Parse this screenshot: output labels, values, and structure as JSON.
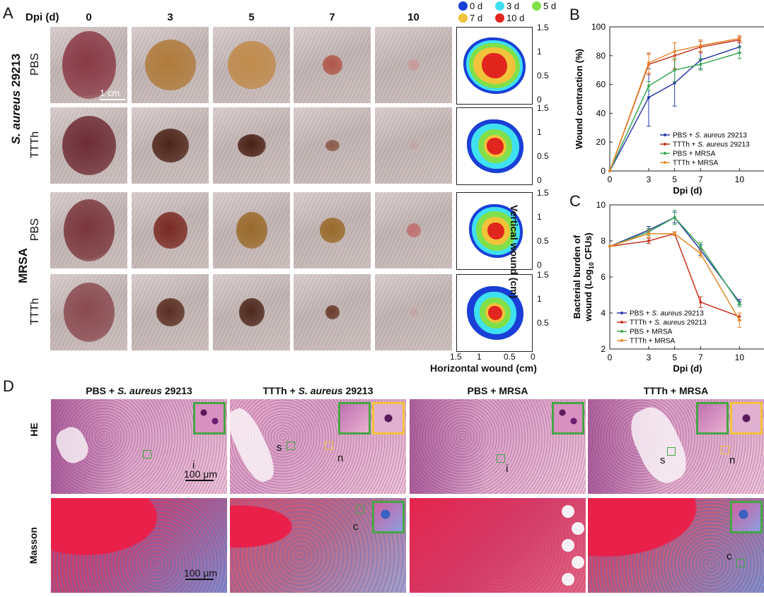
{
  "panel_a": {
    "letter": "A",
    "dpi_header": "Dpi (d)",
    "days": [
      "0",
      "3",
      "5",
      "7",
      "10"
    ],
    "groups": [
      {
        "name": "S. aureus 29213",
        "name_italic": "S. aureus",
        "name_rest": " 29213"
      },
      {
        "name": "MRSA"
      }
    ],
    "rows": [
      "PBS",
      "TTTh",
      "PBS",
      "TTTh"
    ],
    "scale_bar": "1 cm",
    "heatmap_legend": [
      "0 d",
      "3 d",
      "5 d",
      "7 d",
      "10 d"
    ],
    "heatmap_colors": [
      "#1a3fd6",
      "#3fe0f0",
      "#7fe04a",
      "#f2c33a",
      "#e0261e"
    ],
    "vertical_axis_label": "Vertical wound (cm)",
    "horizontal_axis_label": "Horizontal wound (cm)",
    "vertical_ticks": [
      "1.5",
      "1",
      "0.5",
      "0"
    ],
    "horizontal_ticks": [
      "1.5",
      "1",
      "0.5",
      "0"
    ]
  },
  "panel_b": {
    "letter": "B",
    "ylabel": "Wound contraction (%)",
    "xlabel": "Dpi (d)",
    "yticks": [
      "0",
      "20",
      "40",
      "60",
      "80",
      "100"
    ],
    "xticks": [
      "0",
      "3",
      "5",
      "7",
      "10"
    ]
  },
  "panel_c": {
    "letter": "C",
    "ylabel_line1": "Bacterial burden of",
    "ylabel_line2": "wound (Log",
    "ylabel_sub": "10",
    "ylabel_end": " CFUs)",
    "xlabel": "Dpi (d)",
    "yticks": [
      "2",
      "4",
      "6",
      "8",
      "10"
    ],
    "xticks": [
      "0",
      "3",
      "5",
      "7",
      "10"
    ]
  },
  "panel_d": {
    "letter": "D",
    "columns": [
      {
        "pre": "PBS + ",
        "ital": "S. aureus",
        "post": " 29213"
      },
      {
        "pre": "TTTh + ",
        "ital": "S. aureus",
        "post": " 29213"
      },
      {
        "pre": "PBS + MRSA",
        "ital": "",
        "post": ""
      },
      {
        "pre": "TTTh + MRSA",
        "ital": "",
        "post": ""
      }
    ],
    "rows": [
      "HE",
      "Masson"
    ],
    "scale_bar": "100 μm",
    "markers": {
      "i": "i",
      "s": "s",
      "n": "n",
      "c": "c"
    }
  },
  "chart_data": [
    {
      "type": "line",
      "title": "",
      "xlabel": "Dpi (d)",
      "ylabel": "Wound contraction (%)",
      "x": [
        0,
        3,
        5,
        7,
        10
      ],
      "ylim": [
        0,
        100
      ],
      "series": [
        {
          "name": "PBS + S. aureus 29213",
          "name_pre": "PBS + ",
          "name_ital": "S. aureus",
          "name_post": " 29213",
          "color": "#2a3aa8",
          "values": [
            0,
            51,
            61,
            77,
            86
          ]
        },
        {
          "name": "TTTh + S. aureus 29213",
          "name_pre": "TTTh + ",
          "name_ital": "S. aureus",
          "name_post": " 29213",
          "color": "#c8301e",
          "values": [
            0,
            74,
            80,
            86,
            91
          ]
        },
        {
          "name": "PBS + MRSA",
          "name_pre": "PBS + MRSA",
          "name_ital": "",
          "name_post": "",
          "color": "#3aa855",
          "values": [
            0,
            59,
            70,
            74,
            82
          ]
        },
        {
          "name": "TTTh + MRSA",
          "name_pre": "TTTh + MRSA",
          "name_ital": "",
          "name_post": "",
          "color": "#e68a2e",
          "values": [
            0,
            75,
            83,
            87,
            92
          ]
        }
      ],
      "legend": "bottom-right"
    },
    {
      "type": "line",
      "title": "",
      "xlabel": "Dpi (d)",
      "ylabel": "Bacterial burden of wound (Log10 CFUs)",
      "x": [
        0,
        3,
        5,
        7,
        10
      ],
      "ylim": [
        2,
        10
      ],
      "series": [
        {
          "name": "PBS + S. aureus 29213",
          "name_pre": "PBS + ",
          "name_ital": "S. aureus",
          "name_post": " 29213",
          "color": "#2a3aa8",
          "values": [
            7.7,
            8.6,
            9.3,
            7.5,
            4.6
          ]
        },
        {
          "name": "TTTh + S. aureus 29213",
          "name_pre": "TTTh + ",
          "name_ital": "S. aureus",
          "name_post": " 29213",
          "color": "#c8301e",
          "values": [
            7.7,
            8.0,
            8.4,
            4.6,
            3.8
          ]
        },
        {
          "name": "PBS + MRSA",
          "name_pre": "PBS + MRSA",
          "name_ital": "",
          "name_post": "",
          "color": "#3aa855",
          "values": [
            7.7,
            8.5,
            9.3,
            7.7,
            4.5
          ]
        },
        {
          "name": "TTTh + MRSA",
          "name_pre": "TTTh + MRSA",
          "name_ital": "",
          "name_post": "",
          "color": "#e68a2e",
          "values": [
            7.7,
            8.4,
            8.4,
            7.3,
            3.6
          ]
        }
      ],
      "legend": "bottom-left"
    }
  ]
}
